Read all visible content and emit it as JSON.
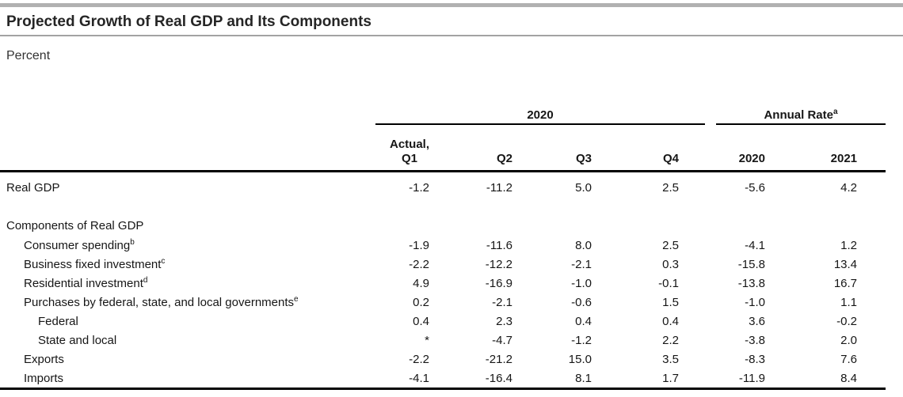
{
  "page": {
    "title": "Projected Growth of Real GDP and Its Components",
    "unit_label": "Percent"
  },
  "table": {
    "groups": {
      "quarterly": {
        "label": "2020"
      },
      "annual": {
        "label": "Annual Rate",
        "footnote": "a"
      }
    },
    "columns": {
      "q1_line1": "Actual,",
      "q1_line2": "Q1",
      "q2": "Q2",
      "q3": "Q3",
      "q4": "Q4",
      "annual_2020": "2020",
      "annual_2021": "2021"
    },
    "rows": [
      {
        "label": "Real GDP",
        "values": [
          "-1.2",
          "-11.2",
          "5.0",
          "2.5",
          "-5.6",
          "4.2"
        ]
      },
      {
        "label": "Components of Real GDP",
        "values": []
      },
      {
        "label": "Consumer spending",
        "footnote": "b",
        "values": [
          "-1.9",
          "-11.6",
          "8.0",
          "2.5",
          "-4.1",
          "1.2"
        ]
      },
      {
        "label": "Business fixed investment",
        "footnote": "c",
        "values": [
          "-2.2",
          "-12.2",
          "-2.1",
          "0.3",
          "-15.8",
          "13.4"
        ]
      },
      {
        "label": "Residential investment",
        "footnote": "d",
        "values": [
          "4.9",
          "-16.9",
          "-1.0",
          "-0.1",
          "-13.8",
          "16.7"
        ]
      },
      {
        "label": "Purchases by federal, state, and local governments",
        "footnote": "e",
        "values": [
          "0.2",
          "-2.1",
          "-0.6",
          "1.5",
          "-1.0",
          "1.1"
        ]
      },
      {
        "label": "Federal",
        "values": [
          "0.4",
          "2.3",
          "0.4",
          "0.4",
          "3.6",
          "-0.2"
        ]
      },
      {
        "label": "State and local",
        "values": [
          "*",
          "-4.7",
          "-1.2",
          "2.2",
          "-3.8",
          "2.0"
        ]
      },
      {
        "label": "Exports",
        "values": [
          "-2.2",
          "-21.2",
          "15.0",
          "3.5",
          "-8.3",
          "7.6"
        ]
      },
      {
        "label": "Imports",
        "values": [
          "-4.1",
          "-16.4",
          "8.1",
          "1.7",
          "-11.9",
          "8.4"
        ]
      }
    ]
  }
}
